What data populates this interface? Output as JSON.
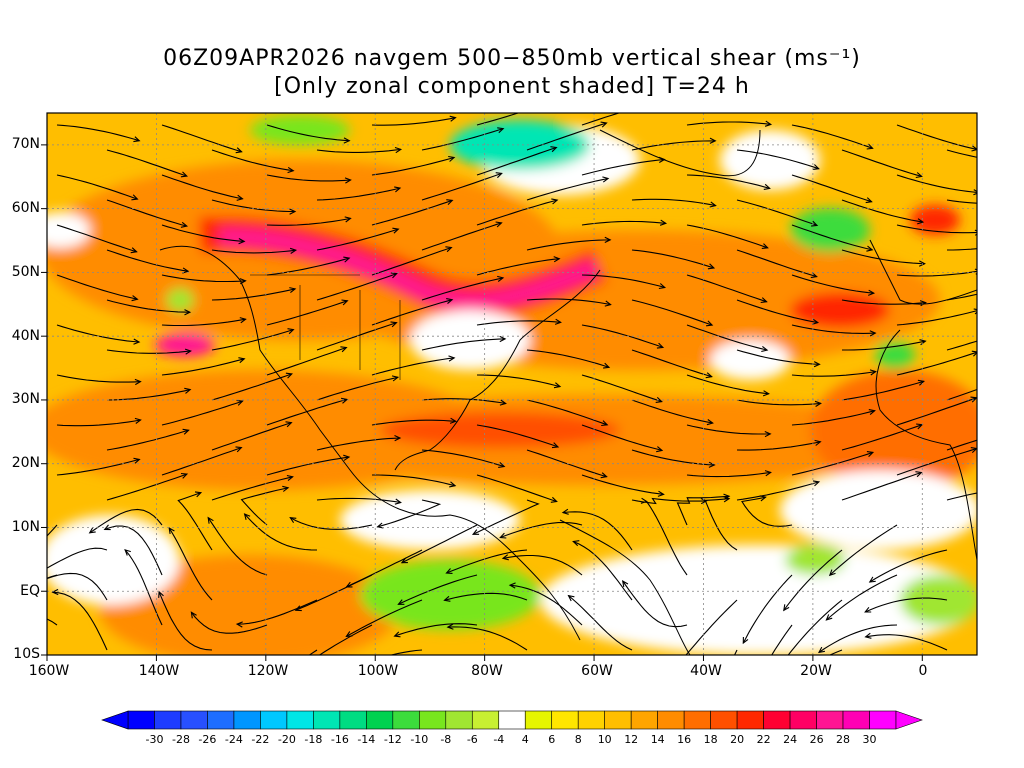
{
  "title": {
    "line1": "06Z09APR2026 navgem 500−850mb vertical shear (ms⁻¹)",
    "line2": "[Only zonal component shaded] T=24 h"
  },
  "axes": {
    "lat_labels": [
      "70N",
      "60N",
      "50N",
      "40N",
      "30N",
      "20N",
      "10N",
      "EQ",
      "10S"
    ],
    "lon_labels": [
      "160W",
      "140W",
      "120W",
      "100W",
      "80W",
      "60W",
      "40W",
      "20W",
      "0"
    ]
  },
  "colorbar": {
    "labels": [
      "-30",
      "-28",
      "-26",
      "-24",
      "-22",
      "-20",
      "-18",
      "-16",
      "-14",
      "-12",
      "-10",
      "-8",
      "-6",
      "-4",
      "4",
      "6",
      "8",
      "10",
      "12",
      "14",
      "16",
      "18",
      "20",
      "22",
      "24",
      "26",
      "28",
      "30"
    ],
    "colors": [
      "#0000ff",
      "#1e3cff",
      "#2850ff",
      "#1e6eff",
      "#0096ff",
      "#00c8ff",
      "#00e6e6",
      "#00e6b4",
      "#00dc82",
      "#00d250",
      "#3cdc3c",
      "#78e61e",
      "#a0e632",
      "#c8f032",
      "#ffffff",
      "#e6f500",
      "#ffe600",
      "#ffd200",
      "#ffbe00",
      "#ffa500",
      "#ff8c00",
      "#ff6e00",
      "#ff5000",
      "#ff2800",
      "#ff0032",
      "#ff0064",
      "#ff1493",
      "#ff00b4",
      "#ff00ff"
    ]
  },
  "map": {
    "region": "North Atlantic / North America",
    "lat_range": [
      -10,
      75
    ],
    "lon_range": [
      -160,
      10
    ],
    "field": "zonal vertical shear (ms-1)",
    "overlay": "shear streamlines",
    "features": [
      {
        "name": "jet-north-america",
        "level": "24-30",
        "color": "#ff1493"
      },
      {
        "name": "jet-northeast-pacific",
        "level": "24-28",
        "color": "#ff1493"
      },
      {
        "name": "subtropical-shear-band",
        "level": "14-20",
        "color": "#ff6e00"
      },
      {
        "name": "greenland-easterly",
        "level": "-12 to -18",
        "color": "#00e6b4"
      },
      {
        "name": "south-american-easterly",
        "level": "-6 to -10",
        "color": "#78e61e"
      }
    ]
  }
}
